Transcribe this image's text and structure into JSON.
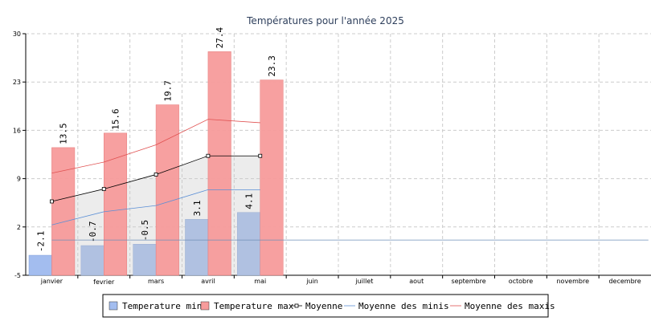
{
  "chart_data": {
    "type": "bar",
    "title": "Températures pour l'année 2025",
    "categories": [
      "janvier",
      "fevrier",
      "mars",
      "avril",
      "mai",
      "juin",
      "juillet",
      "aout",
      "septembre",
      "octobre",
      "novembre",
      "decembre"
    ],
    "yticks": [
      30,
      23,
      16,
      9,
      2,
      -5
    ],
    "ylim": [
      -5,
      30
    ],
    "grid": true,
    "legend_position": "bottom",
    "series": [
      {
        "name": "Temperature min",
        "kind": "bar",
        "color": "#a3bdef",
        "values": [
          -2.1,
          -0.7,
          -0.5,
          3.1,
          4.1,
          null,
          null,
          null,
          null,
          null,
          null,
          null
        ]
      },
      {
        "name": "Temperature max",
        "kind": "bar",
        "color": "#f79b9b",
        "values": [
          13.5,
          15.6,
          19.7,
          27.4,
          23.3,
          null,
          null,
          null,
          null,
          null,
          null,
          null
        ]
      },
      {
        "name": "Moyenne",
        "kind": "line",
        "color": "#000000",
        "values": [
          5.7,
          7.5,
          9.6,
          12.3,
          12.3,
          null,
          null,
          null,
          null,
          null,
          null,
          null
        ]
      },
      {
        "name": "Moyenne des minis",
        "kind": "line",
        "color": "#5b8fd6",
        "values": [
          2.3,
          4.2,
          5.1,
          7.4,
          7.4,
          null,
          null,
          null,
          null,
          null,
          null,
          null
        ]
      },
      {
        "name": "Moyenne des maxis",
        "kind": "line",
        "color": "#e05050",
        "values": [
          9.8,
          11.4,
          13.9,
          17.6,
          17.1,
          null,
          null,
          null,
          null,
          null,
          null,
          null
        ]
      }
    ],
    "reference_line": 0.1,
    "legend": [
      "Temperature min",
      "Temperature max",
      "Moyenne",
      "Moyenne des minis",
      "Moyenne des maxis"
    ]
  }
}
